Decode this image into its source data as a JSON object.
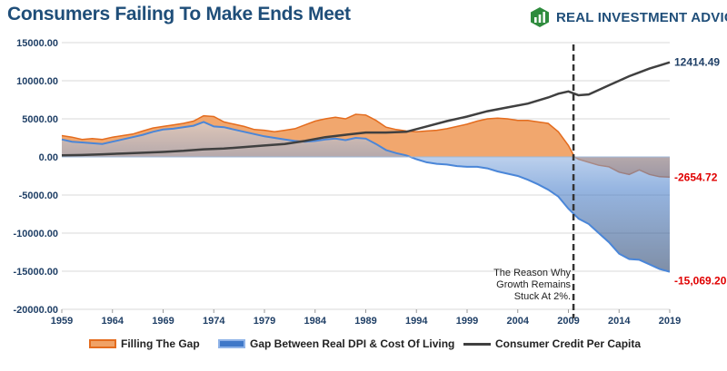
{
  "header": {
    "title": "Consumers Failing To Make Ends Meet",
    "brand": "REAL INVESTMENT ADVICE"
  },
  "colors": {
    "title": "#1f4e79",
    "gap_fill": "#f0a266",
    "gap_line": "#e46c1e",
    "dpi_fill": "#3f78c8",
    "dpi_line": "#4a86d8",
    "credit_line": "#404040",
    "negative_label": "#e00000",
    "positive_label": "#1f3f66",
    "brand_green": "#2e8b3d"
  },
  "annotation": {
    "lines": [
      "The Reason Why",
      "Growth Remains",
      "Stuck At 2%."
    ],
    "marker_year": 2009.5
  },
  "chart_data": {
    "type": "area",
    "title": "Consumers Failing To Make Ends Meet",
    "xlabel": "",
    "ylabel": "",
    "xlim": [
      1959,
      2019
    ],
    "ylim": [
      -20000,
      15000
    ],
    "x_ticks": [
      "1959",
      "1964",
      "1969",
      "1974",
      "1979",
      "1984",
      "1989",
      "1994",
      "1999",
      "2004",
      "2009",
      "2014",
      "2019"
    ],
    "y_ticks": [
      "15000.00",
      "10000.00",
      "5000.00",
      "0.00",
      "-5000.00",
      "-10000.00",
      "-15000.00",
      "-20000.00"
    ],
    "grid": "horizontal",
    "legend_position": "bottom",
    "series": [
      {
        "name": "Filling The Gap",
        "kind": "area",
        "points": [
          [
            1959,
            2800
          ],
          [
            1960,
            2600
          ],
          [
            1961,
            2300
          ],
          [
            1962,
            2400
          ],
          [
            1963,
            2300
          ],
          [
            1964,
            2600
          ],
          [
            1965,
            2800
          ],
          [
            1966,
            3000
          ],
          [
            1967,
            3400
          ],
          [
            1968,
            3800
          ],
          [
            1969,
            4000
          ],
          [
            1970,
            4200
          ],
          [
            1971,
            4400
          ],
          [
            1972,
            4700
          ],
          [
            1973,
            5400
          ],
          [
            1974,
            5300
          ],
          [
            1975,
            4600
          ],
          [
            1976,
            4300
          ],
          [
            1977,
            4000
          ],
          [
            1978,
            3600
          ],
          [
            1979,
            3500
          ],
          [
            1980,
            3300
          ],
          [
            1981,
            3500
          ],
          [
            1982,
            3700
          ],
          [
            1983,
            4200
          ],
          [
            1984,
            4700
          ],
          [
            1985,
            5000
          ],
          [
            1986,
            5200
          ],
          [
            1987,
            5000
          ],
          [
            1988,
            5600
          ],
          [
            1989,
            5500
          ],
          [
            1990,
            4800
          ],
          [
            1991,
            3900
          ],
          [
            1992,
            3600
          ],
          [
            1993,
            3400
          ],
          [
            1994,
            3300
          ],
          [
            1995,
            3400
          ],
          [
            1996,
            3500
          ],
          [
            1997,
            3700
          ],
          [
            1998,
            4000
          ],
          [
            1999,
            4300
          ],
          [
            2000,
            4700
          ],
          [
            2001,
            5000
          ],
          [
            2002,
            5100
          ],
          [
            2003,
            5000
          ],
          [
            2004,
            4800
          ],
          [
            2005,
            4800
          ],
          [
            2006,
            4600
          ],
          [
            2007,
            4400
          ],
          [
            2008,
            3300
          ],
          [
            2009,
            1500
          ],
          [
            2009.6,
            0
          ],
          [
            2010,
            -300
          ],
          [
            2011,
            -700
          ],
          [
            2012,
            -1100
          ],
          [
            2013,
            -1300
          ],
          [
            2014,
            -2000
          ],
          [
            2015,
            -2300
          ],
          [
            2016,
            -1700
          ],
          [
            2017,
            -2300
          ],
          [
            2018,
            -2600
          ],
          [
            2019,
            -2654.72
          ]
        ]
      },
      {
        "name": "Gap Between Real DPI & Cost Of Living",
        "kind": "area",
        "points": [
          [
            1959,
            2300
          ],
          [
            1960,
            2000
          ],
          [
            1961,
            1900
          ],
          [
            1962,
            1800
          ],
          [
            1963,
            1700
          ],
          [
            1964,
            2000
          ],
          [
            1965,
            2300
          ],
          [
            1966,
            2600
          ],
          [
            1967,
            2900
          ],
          [
            1968,
            3300
          ],
          [
            1969,
            3600
          ],
          [
            1970,
            3700
          ],
          [
            1971,
            3900
          ],
          [
            1972,
            4100
          ],
          [
            1973,
            4600
          ],
          [
            1974,
            4000
          ],
          [
            1975,
            3900
          ],
          [
            1976,
            3600
          ],
          [
            1977,
            3300
          ],
          [
            1978,
            3000
          ],
          [
            1979,
            2700
          ],
          [
            1980,
            2500
          ],
          [
            1981,
            2300
          ],
          [
            1982,
            2100
          ],
          [
            1983,
            2000
          ],
          [
            1984,
            2100
          ],
          [
            1985,
            2300
          ],
          [
            1986,
            2400
          ],
          [
            1987,
            2200
          ],
          [
            1988,
            2500
          ],
          [
            1989,
            2400
          ],
          [
            1990,
            1700
          ],
          [
            1991,
            900
          ],
          [
            1992,
            500
          ],
          [
            1993,
            200
          ],
          [
            1994,
            -300
          ],
          [
            1995,
            -700
          ],
          [
            1996,
            -900
          ],
          [
            1997,
            -1000
          ],
          [
            1998,
            -1200
          ],
          [
            1999,
            -1300
          ],
          [
            2000,
            -1300
          ],
          [
            2001,
            -1500
          ],
          [
            2002,
            -1900
          ],
          [
            2003,
            -2200
          ],
          [
            2004,
            -2500
          ],
          [
            2005,
            -3000
          ],
          [
            2006,
            -3600
          ],
          [
            2007,
            -4300
          ],
          [
            2008,
            -5200
          ],
          [
            2009,
            -6800
          ],
          [
            2010,
            -8100
          ],
          [
            2011,
            -8800
          ],
          [
            2012,
            -10000
          ],
          [
            2013,
            -11200
          ],
          [
            2014,
            -12700
          ],
          [
            2015,
            -13400
          ],
          [
            2016,
            -13500
          ],
          [
            2017,
            -14100
          ],
          [
            2018,
            -14700
          ],
          [
            2019,
            -15069.2
          ]
        ]
      },
      {
        "name": "Consumer Credit Per Capita",
        "kind": "line",
        "points": [
          [
            1959,
            200
          ],
          [
            1961,
            250
          ],
          [
            1963,
            350
          ],
          [
            1965,
            450
          ],
          [
            1967,
            550
          ],
          [
            1969,
            650
          ],
          [
            1971,
            800
          ],
          [
            1973,
            1000
          ],
          [
            1975,
            1100
          ],
          [
            1977,
            1300
          ],
          [
            1979,
            1500
          ],
          [
            1981,
            1700
          ],
          [
            1983,
            2100
          ],
          [
            1985,
            2600
          ],
          [
            1987,
            2900
          ],
          [
            1989,
            3200
          ],
          [
            1991,
            3200
          ],
          [
            1993,
            3300
          ],
          [
            1995,
            4000
          ],
          [
            1997,
            4700
          ],
          [
            1999,
            5300
          ],
          [
            2001,
            6000
          ],
          [
            2003,
            6500
          ],
          [
            2005,
            7000
          ],
          [
            2007,
            7800
          ],
          [
            2008,
            8300
          ],
          [
            2009,
            8600
          ],
          [
            2010,
            8100
          ],
          [
            2011,
            8200
          ],
          [
            2012,
            8800
          ],
          [
            2013,
            9400
          ],
          [
            2014,
            10000
          ],
          [
            2015,
            10600
          ],
          [
            2016,
            11100
          ],
          [
            2017,
            11600
          ],
          [
            2018,
            12000
          ],
          [
            2019,
            12414.49
          ]
        ]
      }
    ],
    "end_labels": [
      {
        "series": "Consumer Credit Per Capita",
        "text": "12414.49",
        "value": 12414.49
      },
      {
        "series": "Filling The Gap",
        "text": "-2654.72",
        "value": -2654.72
      },
      {
        "series": "Gap Between Real DPI & Cost Of Living",
        "text": "-15,069.20",
        "value": -15069.2
      }
    ]
  }
}
